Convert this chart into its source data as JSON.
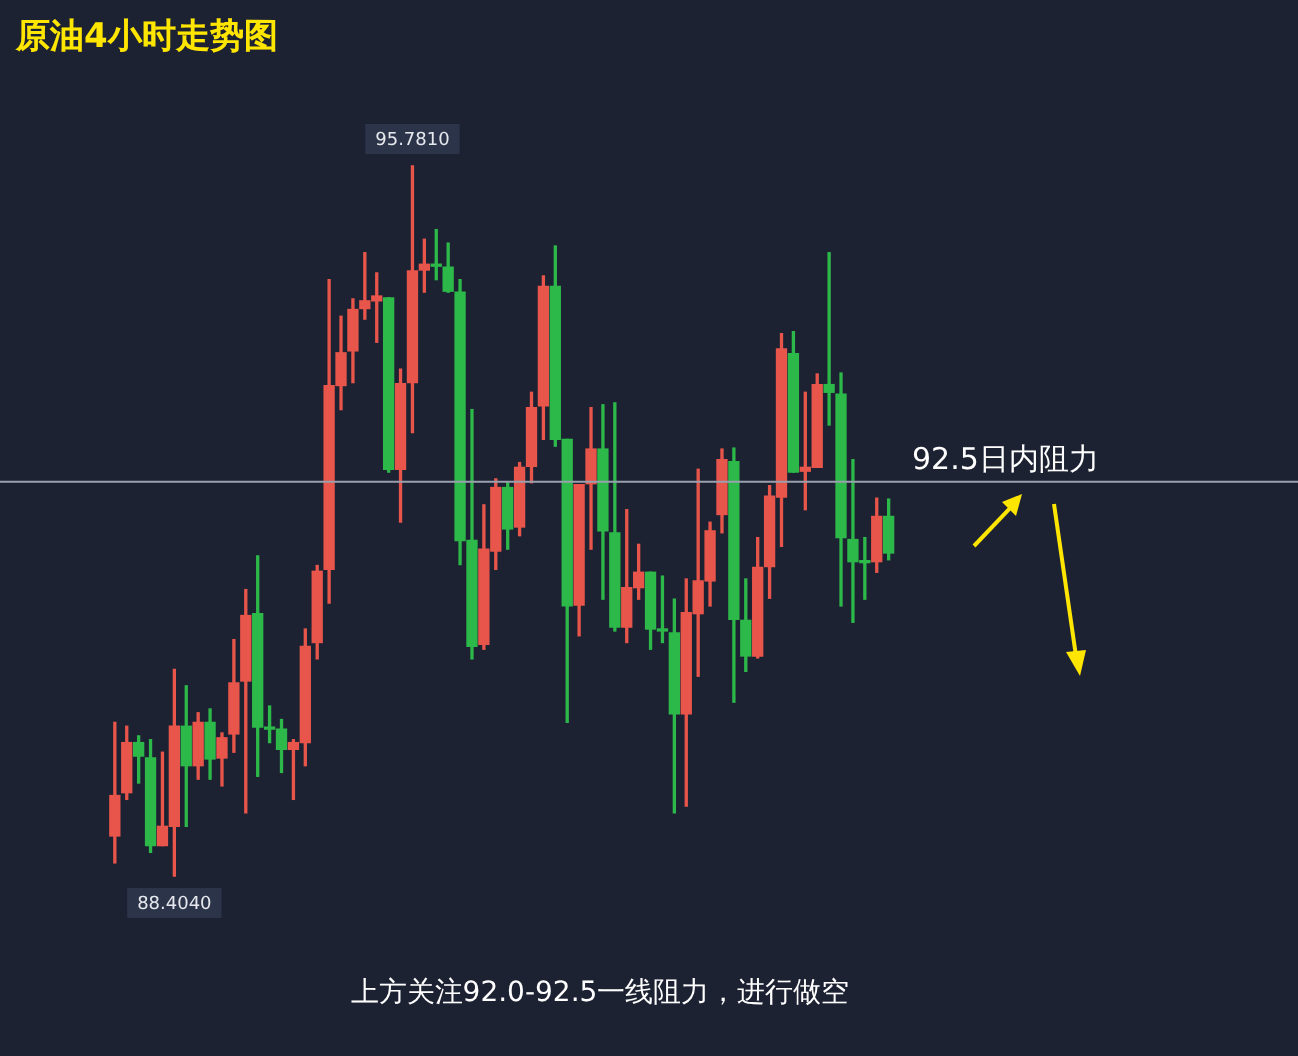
{
  "chart_data": {
    "type": "candlestick",
    "title": "原油4小时走势图",
    "tick_labels": false,
    "categories": [
      null,
      null,
      null,
      null,
      null,
      null,
      null,
      null,
      null,
      null,
      null,
      null,
      null,
      null,
      null,
      null,
      null,
      null,
      null,
      null,
      null,
      null,
      null,
      null,
      null,
      null,
      null,
      null,
      null,
      null,
      null,
      null,
      null,
      null,
      null,
      null,
      null,
      null,
      null,
      null,
      null,
      null,
      null,
      null,
      null,
      null,
      null,
      null,
      null,
      null,
      null,
      null,
      null,
      null,
      null,
      null,
      null,
      null,
      null,
      null,
      null,
      null,
      null,
      null,
      null,
      null
    ],
    "ohlc": [
      [
        88.82,
        90.0,
        88.54,
        89.24
      ],
      [
        89.27,
        89.96,
        89.2,
        89.79
      ],
      [
        89.79,
        89.86,
        89.37,
        89.65
      ],
      [
        89.63,
        89.82,
        88.65,
        88.72
      ],
      [
        88.72,
        89.69,
        88.72,
        88.92
      ],
      [
        88.92,
        90.55,
        88.404,
        89.96
      ],
      [
        89.96,
        90.38,
        88.92,
        89.55
      ],
      [
        89.55,
        90.1,
        89.41,
        90.0
      ],
      [
        90.0,
        90.14,
        89.41,
        89.62
      ],
      [
        89.63,
        89.89,
        89.34,
        89.84
      ],
      [
        89.88,
        90.86,
        89.69,
        90.41
      ],
      [
        90.43,
        91.38,
        89.06,
        91.11
      ],
      [
        91.13,
        91.73,
        89.44,
        89.95
      ],
      [
        89.95,
        90.17,
        89.79,
        89.93
      ],
      [
        89.93,
        90.03,
        89.48,
        89.72
      ],
      [
        89.72,
        89.82,
        89.2,
        89.79
      ],
      [
        89.79,
        90.97,
        89.55,
        90.79
      ],
      [
        90.83,
        91.63,
        90.66,
        91.57
      ],
      [
        91.59,
        94.6,
        91.24,
        93.5
      ],
      [
        93.5,
        94.22,
        93.25,
        93.84
      ],
      [
        93.86,
        94.4,
        93.53,
        94.29
      ],
      [
        94.3,
        94.88,
        94.19,
        94.38
      ],
      [
        94.38,
        94.67,
        93.95,
        94.43
      ],
      [
        94.41,
        94.41,
        92.6,
        92.63
      ],
      [
        92.63,
        93.67,
        92.08,
        93.52
      ],
      [
        93.53,
        95.781,
        93.01,
        94.69
      ],
      [
        94.7,
        95.02,
        94.47,
        94.76
      ],
      [
        94.76,
        95.12,
        94.6,
        94.74
      ],
      [
        94.73,
        94.98,
        94.47,
        94.48
      ],
      [
        94.47,
        94.6,
        91.64,
        91.89
      ],
      [
        91.89,
        93.25,
        90.66,
        90.79
      ],
      [
        90.81,
        92.26,
        90.76,
        91.8
      ],
      [
        91.78,
        92.53,
        91.59,
        92.44
      ],
      [
        92.44,
        92.49,
        91.8,
        92.01
      ],
      [
        92.03,
        92.7,
        91.94,
        92.65
      ],
      [
        92.66,
        93.43,
        92.49,
        93.27
      ],
      [
        93.29,
        94.64,
        92.94,
        94.53
      ],
      [
        94.53,
        94.95,
        92.87,
        92.94
      ],
      [
        92.94,
        92.94,
        90.0,
        91.21
      ],
      [
        91.22,
        92.47,
        90.9,
        92.47
      ],
      [
        92.48,
        93.27,
        91.8,
        92.84
      ],
      [
        92.84,
        93.3,
        91.28,
        91.99
      ],
      [
        91.97,
        93.32,
        90.95,
        90.99
      ],
      [
        90.99,
        92.21,
        90.83,
        91.4
      ],
      [
        91.4,
        91.85,
        91.28,
        91.56
      ],
      [
        91.56,
        91.56,
        90.76,
        90.97
      ],
      [
        90.97,
        91.52,
        90.83,
        90.95
      ],
      [
        90.93,
        91.28,
        89.06,
        90.09
      ],
      [
        90.09,
        91.49,
        89.13,
        91.14
      ],
      [
        91.13,
        92.63,
        90.48,
        91.47
      ],
      [
        91.47,
        92.08,
        91.21,
        91.99
      ],
      [
        92.16,
        92.84,
        91.97,
        92.73
      ],
      [
        92.71,
        92.85,
        90.21,
        91.07
      ],
      [
        91.06,
        91.49,
        90.53,
        90.69
      ],
      [
        90.69,
        91.92,
        90.67,
        91.61
      ],
      [
        91.62,
        92.46,
        91.29,
        92.35
      ],
      [
        92.34,
        94.04,
        91.83,
        93.88
      ],
      [
        93.83,
        94.06,
        92.6,
        92.6
      ],
      [
        92.61,
        93.43,
        92.21,
        92.65
      ],
      [
        92.65,
        93.62,
        92.65,
        93.51
      ],
      [
        93.51,
        94.88,
        93.09,
        93.43
      ],
      [
        93.41,
        93.63,
        91.21,
        91.92
      ],
      [
        91.9,
        92.73,
        91.04,
        91.67
      ],
      [
        91.67,
        91.92,
        91.28,
        91.66
      ],
      [
        91.67,
        92.33,
        91.56,
        92.14
      ],
      [
        92.14,
        92.32,
        91.69,
        91.76
      ]
    ],
    "colors": [
      "#e8554a",
      "#e8554a",
      "#2db84a",
      "#2db84a",
      "#e8554a",
      "#e8554a",
      "#2db84a",
      "#e8554a",
      "#2db84a",
      "#e8554a",
      "#e8554a",
      "#e8554a",
      "#2db84a",
      "#2db84a",
      "#2db84a",
      "#e8554a",
      "#e8554a",
      "#e8554a",
      "#e8554a",
      "#e8554a",
      "#e8554a",
      "#e8554a",
      "#e8554a",
      "#2db84a",
      "#e8554a",
      "#e8554a",
      "#e8554a",
      "#2db84a",
      "#2db84a",
      "#2db84a",
      "#2db84a",
      "#e8554a",
      "#e8554a",
      "#2db84a",
      "#e8554a",
      "#e8554a",
      "#e8554a",
      "#2db84a",
      "#2db84a",
      "#e8554a",
      "#e8554a",
      "#2db84a",
      "#2db84a",
      "#e8554a",
      "#e8554a",
      "#2db84a",
      "#2db84a",
      "#2db84a",
      "#e8554a",
      "#e8554a",
      "#e8554a",
      "#e8554a",
      "#2db84a",
      "#2db84a",
      "#e8554a",
      "#e8554a",
      "#e8554a",
      "#2db84a",
      "#e8554a",
      "#e8554a",
      "#2db84a",
      "#2db84a",
      "#2db84a",
      "#2db84a",
      "#e8554a",
      "#2db84a"
    ],
    "ref_lines": [
      {
        "axis": "y",
        "value": 92.5,
        "label": "92.5日内阻力",
        "color": "#9aa0ae"
      }
    ],
    "annotations": [
      {
        "text": "95.7810",
        "y": 95.781
      },
      {
        "text": "88.4040",
        "y": 88.404
      },
      "上方关注92.0-92.5一线阻力，进行做空"
    ]
  }
}
